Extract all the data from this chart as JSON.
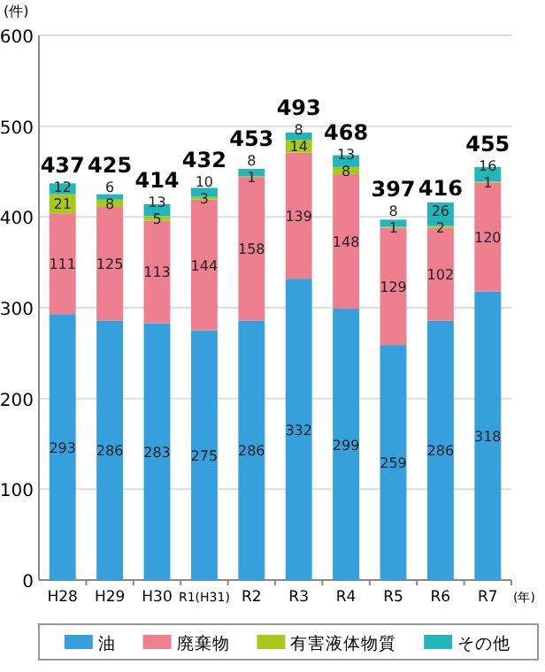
{
  "chart_data": {
    "type": "bar",
    "stacked": true,
    "ylabel": "(件)",
    "xlabel": "(年)",
    "categories": [
      "H28",
      "H29",
      "H30",
      "R1(H31)",
      "R2",
      "R3",
      "R4",
      "R5",
      "R6",
      "R7"
    ],
    "series": [
      {
        "name": "油",
        "color": "#36a0dc",
        "values": [
          293,
          286,
          283,
          275,
          286,
          332,
          299,
          259,
          286,
          318
        ]
      },
      {
        "name": "廃棄物",
        "color": "#ee7f8e",
        "values": [
          111,
          125,
          113,
          144,
          158,
          139,
          148,
          129,
          102,
          120
        ]
      },
      {
        "name": "有害液体物質",
        "color": "#a8c919",
        "values": [
          21,
          8,
          5,
          3,
          1,
          14,
          8,
          1,
          2,
          1
        ]
      },
      {
        "name": "その他",
        "color": "#22b5b9",
        "values": [
          12,
          6,
          13,
          10,
          8,
          8,
          13,
          8,
          26,
          16
        ]
      }
    ],
    "totals": [
      "437",
      "425",
      "414",
      "432",
      "453",
      "493",
      "468",
      "397",
      "416",
      "455"
    ],
    "data_labels": true,
    "ylim": [
      0,
      600
    ],
    "yticks": [
      0,
      100,
      200,
      300,
      400,
      500,
      600
    ],
    "grid": "y",
    "legend": "bottom"
  }
}
